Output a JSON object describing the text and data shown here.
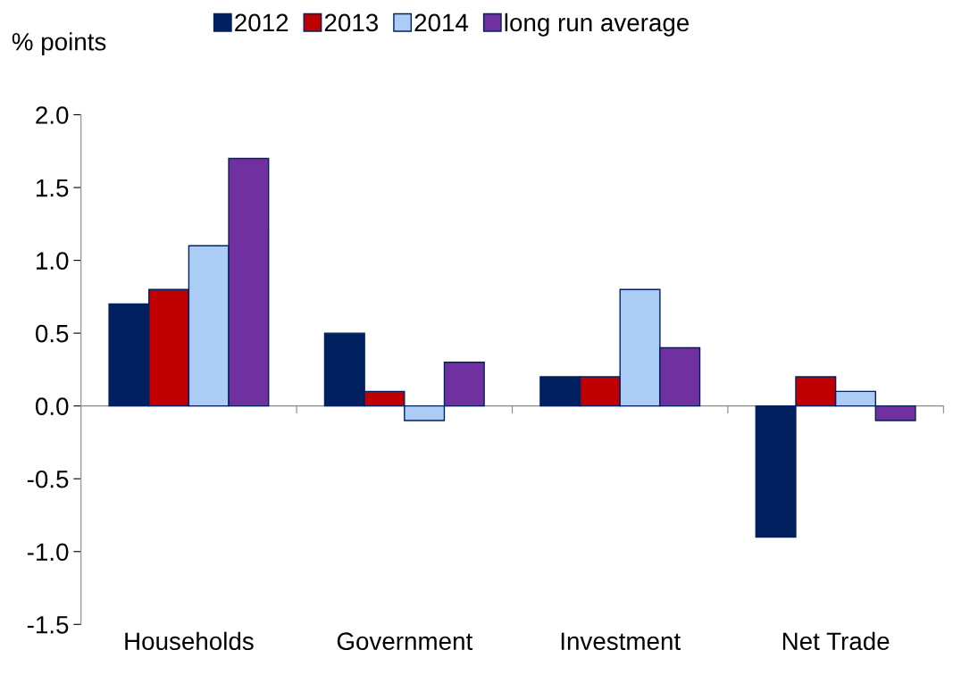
{
  "chart_data": {
    "type": "bar",
    "ylabel": "% points",
    "categories": [
      "Households",
      "Government",
      "Investment",
      "Net Trade"
    ],
    "series": [
      {
        "name": "2012",
        "color": "#002060",
        "values": [
          0.7,
          0.5,
          0.2,
          -0.9
        ]
      },
      {
        "name": "2013",
        "color": "#c00000",
        "values": [
          0.8,
          0.1,
          0.2,
          0.2
        ]
      },
      {
        "name": "2014",
        "color": "#abcdf5",
        "values": [
          1.1,
          -0.1,
          0.8,
          0.1
        ]
      },
      {
        "name": "long run average",
        "color": "#7030a0",
        "values": [
          1.7,
          0.3,
          0.4,
          -0.1
        ]
      }
    ],
    "ylim": [
      -1.5,
      2.0
    ],
    "yticks": [
      -1.5,
      {
        "value": -1,
        "label": "-1.0"
      },
      -0.5,
      {
        "value": 0,
        "label": "0.0"
      },
      0.5,
      {
        "value": 1,
        "label": "1.0"
      },
      1.5,
      {
        "value": 2,
        "label": "2.0"
      }
    ],
    "legend": "top"
  }
}
